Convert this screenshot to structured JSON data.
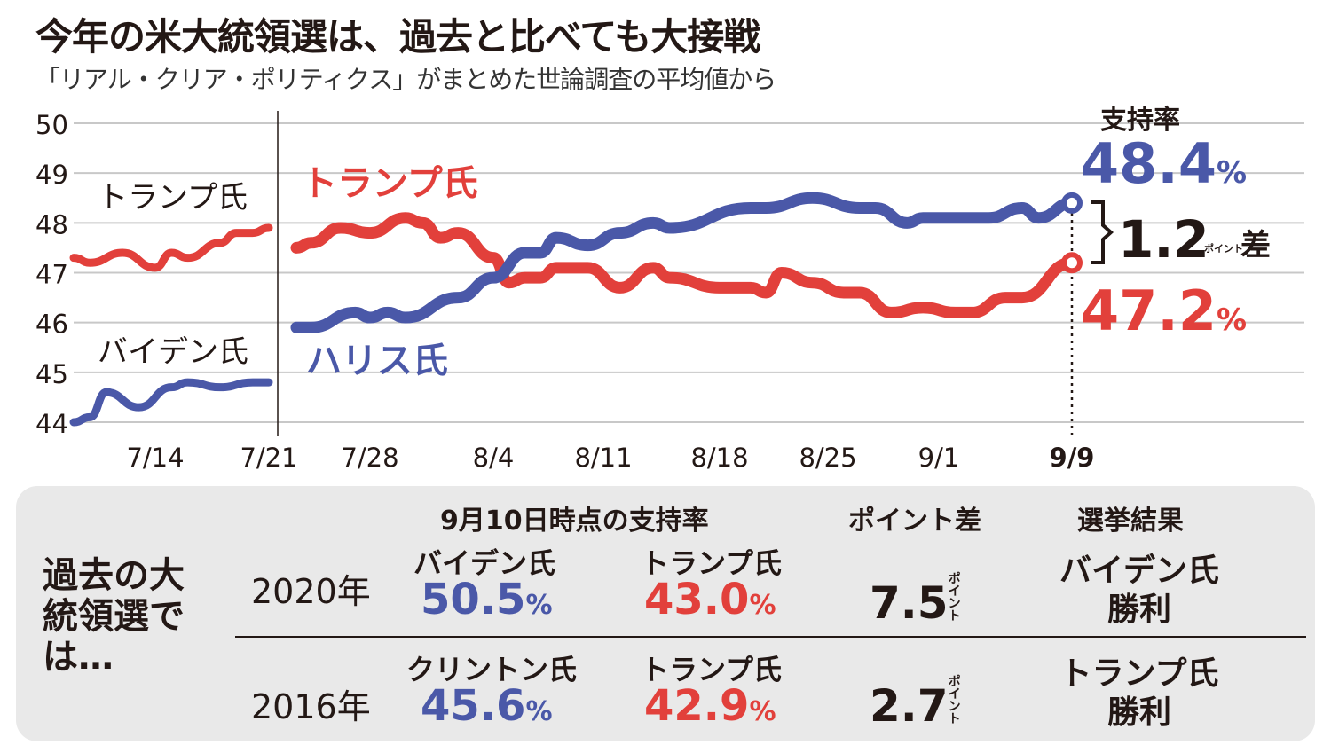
{
  "header": {
    "title": "今年の米大統領選は、過去と比べても大接戦",
    "subtitle": "「リアル・クリア・ポリティクス」がまとめた世論調査の平均値から"
  },
  "colors": {
    "harris_biden": "#4a58a8",
    "trump": "#e2403b",
    "grid": "#c8c8c8",
    "panel": "#e9e9e9"
  },
  "chart_data": {
    "type": "line",
    "title": "",
    "xlabel": "",
    "ylabel": "",
    "ylim": [
      44,
      50
    ],
    "yticks": [
      "50",
      "49",
      "48",
      "47",
      "46",
      "45",
      "44"
    ],
    "xticks": [
      "7/14",
      "7/21",
      "7/28",
      "8/4",
      "8/11",
      "8/18",
      "8/25",
      "9/1",
      "9/9"
    ],
    "grid": true,
    "panels": [
      {
        "series": [
          {
            "name": "トランプ氏",
            "color": "#e2403b",
            "x": [
              "7/9",
              "7/10",
              "7/12",
              "7/14",
              "7/15",
              "7/16",
              "7/18",
              "7/19",
              "7/20",
              "7/21"
            ],
            "y": [
              47.3,
              47.2,
              47.4,
              47.1,
              47.4,
              47.3,
              47.6,
              47.8,
              47.8,
              47.9
            ]
          },
          {
            "name": "バイデン氏",
            "color": "#4a58a8",
            "x": [
              "7/9",
              "7/10",
              "7/11",
              "7/13",
              "7/15",
              "7/16",
              "7/18",
              "7/20",
              "7/21"
            ],
            "y": [
              44.0,
              44.1,
              44.6,
              44.3,
              44.7,
              44.8,
              44.7,
              44.8,
              44.8
            ]
          }
        ]
      },
      {
        "series": [
          {
            "name": "トランプ氏",
            "color": "#e2403b",
            "x": [
              "7/23",
              "7/24",
              "7/26",
              "7/28",
              "7/30",
              "7/31",
              "8/1",
              "8/2",
              "8/4",
              "8/5",
              "8/6",
              "8/7",
              "8/8",
              "8/10",
              "8/12",
              "8/14",
              "8/15",
              "8/18",
              "8/20",
              "8/21",
              "8/22",
              "8/24",
              "8/26",
              "8/27",
              "8/29",
              "8/31",
              "9/2",
              "9/3",
              "9/5",
              "9/6",
              "9/9"
            ],
            "y": [
              47.5,
              47.6,
              47.9,
              47.8,
              48.1,
              48.0,
              47.7,
              47.8,
              47.3,
              46.8,
              46.9,
              46.9,
              47.1,
              47.1,
              46.7,
              47.1,
              46.9,
              46.7,
              46.7,
              46.6,
              47.0,
              46.8,
              46.6,
              46.6,
              46.2,
              46.3,
              46.2,
              46.2,
              46.5,
              46.5,
              47.2
            ]
          },
          {
            "name": "ハリス氏",
            "color": "#4a58a8",
            "x": [
              "7/23",
              "7/24",
              "7/27",
              "7/28",
              "7/29",
              "7/30",
              "8/2",
              "8/4",
              "8/6",
              "8/7",
              "8/8",
              "8/10",
              "8/12",
              "8/14",
              "8/15",
              "8/20",
              "8/21",
              "8/24",
              "8/27",
              "8/28",
              "8/30",
              "8/31",
              "9/4",
              "9/6",
              "9/7",
              "9/9"
            ],
            "y": [
              45.9,
              45.9,
              46.2,
              46.1,
              46.2,
              46.1,
              46.5,
              46.9,
              47.4,
              47.4,
              47.7,
              47.55,
              47.8,
              48.0,
              47.9,
              48.3,
              48.3,
              48.5,
              48.3,
              48.3,
              48.0,
              48.1,
              48.1,
              48.3,
              48.1,
              48.4
            ]
          }
        ]
      }
    ],
    "annotations": {
      "left_trump_label": "トランプ氏",
      "left_biden_label": "バイデン氏",
      "right_trump_label": "トランプ氏",
      "right_harris_label": "ハリス氏",
      "support_label": "支持率",
      "harris_final": "48.4",
      "trump_final": "47.2",
      "percent": "%",
      "gap_value": "1.2",
      "gap_unit": "ポイント",
      "gap_suffix": "差"
    }
  },
  "past": {
    "side_label": "過去の大統領選では…",
    "headers": {
      "support": "9月10日時点の支持率",
      "diff": "ポイント差",
      "result": "選挙結果"
    },
    "rows": [
      {
        "year": "2020年",
        "dem_name": "バイデン氏",
        "dem_pct": "50.5",
        "rep_name": "トランプ氏",
        "rep_pct": "43.0",
        "diff": "7.5",
        "result": "バイデン氏勝利"
      },
      {
        "year": "2016年",
        "dem_name": "クリントン氏",
        "dem_pct": "45.6",
        "rep_name": "トランプ氏",
        "rep_pct": "42.9",
        "diff": "2.7",
        "result": "トランプ氏勝利"
      }
    ],
    "percent": "%",
    "diff_unit": "ポイント"
  }
}
